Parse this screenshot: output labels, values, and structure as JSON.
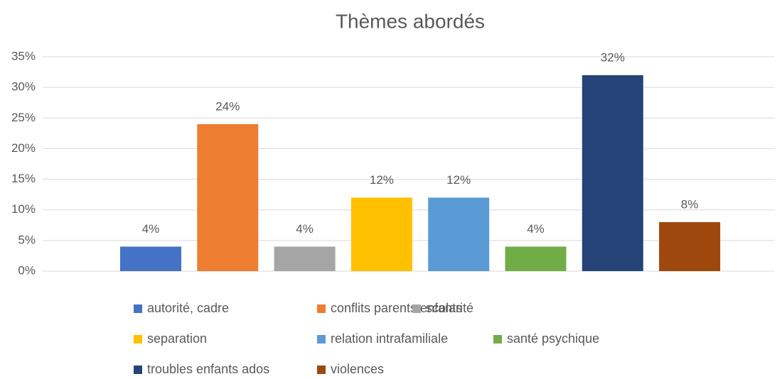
{
  "chart_data": {
    "type": "bar",
    "title": "Thèmes abordés",
    "categories": [
      null
    ],
    "series": [
      {
        "name": "autorité, cadre",
        "color": "#4472c4",
        "values": [
          4
        ],
        "value_labels": [
          "4%"
        ]
      },
      {
        "name": "conflits parents enfants",
        "color": "#ed7d31",
        "values": [
          24
        ],
        "value_labels": [
          "24%"
        ]
      },
      {
        "name": "scolarité",
        "color": "#a5a5a5",
        "values": [
          4
        ],
        "value_labels": [
          "4%"
        ]
      },
      {
        "name": "separation",
        "color": "#ffc000",
        "values": [
          12
        ],
        "value_labels": [
          "12%"
        ]
      },
      {
        "name": "relation intrafamiliale",
        "color": "#5b9bd5",
        "values": [
          12
        ],
        "value_labels": [
          "12%"
        ]
      },
      {
        "name": "santé psychique",
        "color": "#70ad47",
        "values": [
          4
        ],
        "value_labels": [
          "4%"
        ]
      },
      {
        "name": "troubles enfants ados",
        "color": "#264478",
        "values": [
          32
        ],
        "value_labels": [
          "32%"
        ]
      },
      {
        "name": "violences",
        "color": "#9e480e",
        "values": [
          8
        ],
        "value_labels": [
          "8%"
        ]
      }
    ],
    "ylim": [
      0,
      35
    ],
    "yticks": [
      {
        "value": 0,
        "label": "0%"
      },
      {
        "value": 5,
        "label": "5%"
      },
      {
        "value": 10,
        "label": "10%"
      },
      {
        "value": 15,
        "label": "15%"
      },
      {
        "value": 20,
        "label": "20%"
      },
      {
        "value": 25,
        "label": "25%"
      },
      {
        "value": 30,
        "label": "30%"
      },
      {
        "value": 35,
        "label": "35%"
      }
    ],
    "grid": true,
    "legend": "bottom"
  }
}
